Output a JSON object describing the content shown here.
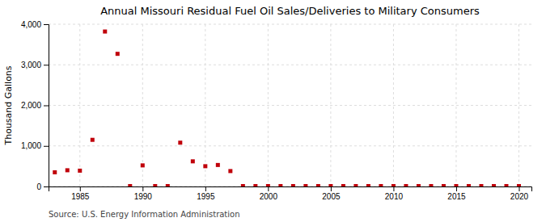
{
  "chart_data": {
    "type": "scatter",
    "title": "Annual Missouri Residual Fuel Oil Sales/Deliveries to Military Consumers",
    "ylabel": "Thousand Gallons",
    "annotation": "Source: U.S. Energy Information Administration",
    "color": "#c0000a",
    "marker": "square",
    "grid": true,
    "xlim": [
      1982.5,
      2021
    ],
    "ylim": [
      0,
      4000
    ],
    "xticks": [
      1985,
      1990,
      1995,
      2000,
      2005,
      2010,
      2015,
      2020
    ],
    "yticks": [
      0,
      {
        "value": 1000,
        "label": "1,000"
      },
      {
        "value": 2000,
        "label": "2,000"
      },
      {
        "value": 3000,
        "label": "3,000"
      },
      {
        "value": 4000,
        "label": "4,000"
      }
    ],
    "x": [
      1983,
      1984,
      1985,
      1986,
      1987,
      1988,
      1989,
      1990,
      1991,
      1992,
      1993,
      1994,
      1995,
      1996,
      1997,
      1998,
      1999,
      2000,
      2001,
      2002,
      2003,
      2004,
      2005,
      2006,
      2007,
      2008,
      2009,
      2010,
      2011,
      2012,
      2013,
      2014,
      2015,
      2016,
      2017,
      2018,
      2019,
      2020
    ],
    "values": [
      350,
      400,
      390,
      1150,
      3820,
      3270,
      10,
      520,
      10,
      10,
      1080,
      620,
      500,
      530,
      380,
      10,
      10,
      10,
      10,
      10,
      10,
      10,
      10,
      10,
      10,
      10,
      10,
      10,
      10,
      10,
      10,
      10,
      10,
      10,
      10,
      10,
      10,
      10
    ]
  }
}
